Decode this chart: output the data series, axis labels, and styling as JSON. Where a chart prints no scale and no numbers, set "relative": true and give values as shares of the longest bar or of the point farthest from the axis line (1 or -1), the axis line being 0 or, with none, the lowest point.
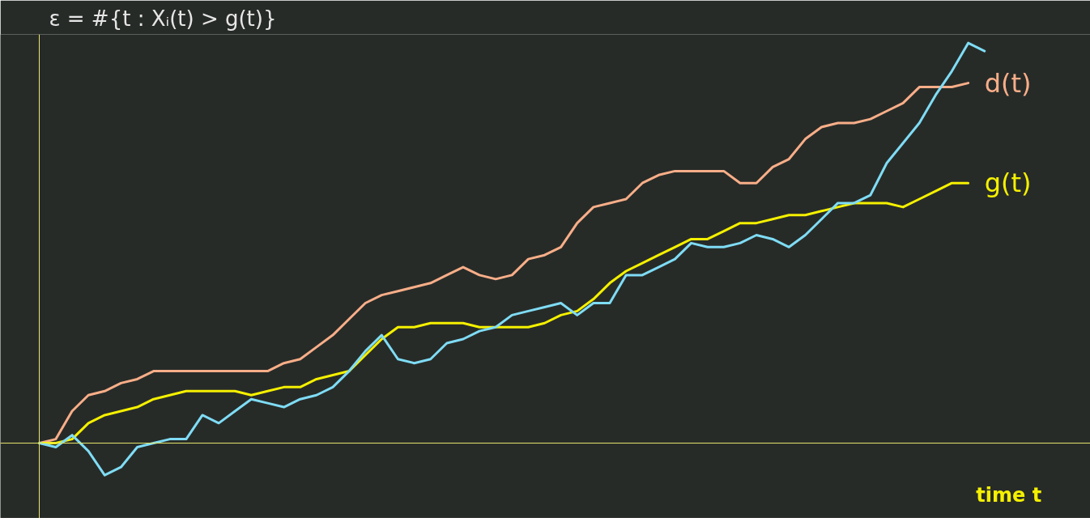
{
  "chart_data": {
    "type": "line",
    "title": "ε = #{t : Xᵢ(t) > g(t)}",
    "xlabel": "time t",
    "relative": true,
    "ref_lines": [
      {
        "axis": "y",
        "value": 0,
        "color": "#e8e86a"
      }
    ],
    "marker": "none",
    "line_style": "solid",
    "categories": [
      null,
      null,
      null,
      null,
      null,
      null,
      null,
      null,
      null,
      null,
      null,
      null,
      null,
      null,
      null,
      null,
      null,
      null,
      null,
      null,
      null,
      null,
      null,
      null,
      null,
      null,
      null,
      null,
      null,
      null,
      null,
      null,
      null,
      null,
      null,
      null,
      null,
      null,
      null,
      null,
      null,
      null,
      null,
      null,
      null,
      null,
      null,
      null,
      null,
      null,
      null,
      null,
      null,
      null,
      null,
      null,
      null,
      null,
      null
    ],
    "series": [
      {
        "name": "d(t)",
        "color": "#f8ae88",
        "values": [
          0,
          0.01,
          0.08,
          0.12,
          0.13,
          0.15,
          0.16,
          0.18,
          0.18,
          0.18,
          0.18,
          0.18,
          0.18,
          0.18,
          0.18,
          0.2,
          0.21,
          0.24,
          0.27,
          0.31,
          0.35,
          0.37,
          0.38,
          0.39,
          0.4,
          0.42,
          0.44,
          0.42,
          0.41,
          0.42,
          0.46,
          0.47,
          0.49,
          0.55,
          0.59,
          0.6,
          0.61,
          0.65,
          0.67,
          0.68,
          0.68,
          0.68,
          0.68,
          0.65,
          0.65,
          0.69,
          0.71,
          0.76,
          0.79,
          0.8,
          0.8,
          0.81,
          0.83,
          0.85,
          0.89,
          0.89,
          0.89,
          0.9,
          null
        ]
      },
      {
        "name": "g(t)",
        "color": "#f5f000",
        "values": [
          0,
          0,
          0.01,
          0.05,
          0.07,
          0.08,
          0.09,
          0.11,
          0.12,
          0.13,
          0.13,
          0.13,
          0.13,
          0.12,
          0.13,
          0.14,
          0.14,
          0.16,
          0.17,
          0.18,
          0.22,
          0.26,
          0.29,
          0.29,
          0.3,
          0.3,
          0.3,
          0.29,
          0.29,
          0.29,
          0.29,
          0.3,
          0.32,
          0.33,
          0.36,
          0.4,
          0.43,
          0.45,
          0.47,
          0.49,
          0.51,
          0.51,
          0.53,
          0.55,
          0.55,
          0.56,
          0.57,
          0.57,
          0.58,
          0.59,
          0.6,
          0.6,
          0.6,
          0.59,
          0.61,
          0.63,
          0.65,
          0.65,
          null
        ]
      },
      {
        "color": "#7fdcf5",
        "values": [
          0,
          -0.01,
          0.02,
          -0.02,
          -0.08,
          -0.06,
          -0.01,
          0,
          0.01,
          0.01,
          0.07,
          0.05,
          0.08,
          0.11,
          0.1,
          0.09,
          0.11,
          0.12,
          0.14,
          0.18,
          0.23,
          0.27,
          0.21,
          0.2,
          0.21,
          0.25,
          0.26,
          0.28,
          0.29,
          0.32,
          0.33,
          0.34,
          0.35,
          0.32,
          0.35,
          0.35,
          0.42,
          0.42,
          0.44,
          0.46,
          0.5,
          0.49,
          0.49,
          0.5,
          0.52,
          0.51,
          0.49,
          0.52,
          0.56,
          0.6,
          0.6,
          0.62,
          0.7,
          0.75,
          0.8,
          0.87,
          0.93,
          1,
          0.98
        ]
      }
    ]
  }
}
